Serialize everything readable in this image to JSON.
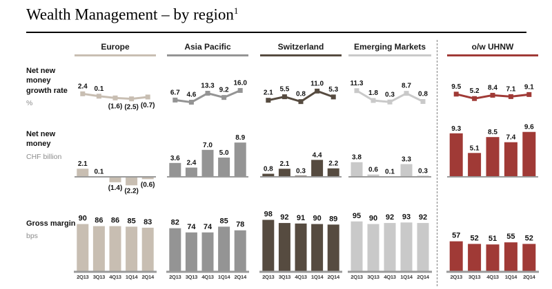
{
  "page": {
    "title": "Wealth Management – by region",
    "title_footnote_marker": "1"
  },
  "quarters": [
    "2Q13",
    "3Q13",
    "4Q13",
    "1Q14",
    "2Q14"
  ],
  "row_labels": [
    {
      "title": "Net new money growth rate",
      "unit": "%"
    },
    {
      "title": "Net new money",
      "unit": "CHF billion"
    },
    {
      "title": "Gross margin",
      "unit": "bps"
    }
  ],
  "panels": [
    {
      "name": "Europe",
      "color": "#c8beb2"
    },
    {
      "name": "Asia Pacific",
      "color": "#949494"
    },
    {
      "name": "Switzerland",
      "color": "#564b40"
    },
    {
      "name": "Emerging Markets",
      "color": "#c9c9c9"
    },
    {
      "name": "o/w UHNW",
      "color": "#a03a36"
    }
  ],
  "chart_data": [
    {
      "type": "line",
      "title": "Net new money growth rate",
      "ylabel": "%",
      "decimals": 1,
      "negative_format": "parentheses",
      "legend": "none",
      "categories": [
        "2Q13",
        "3Q13",
        "4Q13",
        "1Q14",
        "2Q14"
      ],
      "series": [
        {
          "name": "Europe",
          "values": [
            2.4,
            0.1,
            -1.6,
            -2.5,
            -0.7
          ],
          "labels": [
            "2.4",
            "0.1",
            "(1.6)",
            "(2.5)",
            "(0.7)"
          ]
        },
        {
          "name": "Asia Pacific",
          "values": [
            6.7,
            4.6,
            13.3,
            9.2,
            16.0
          ]
        },
        {
          "name": "Switzerland",
          "values": [
            2.1,
            5.5,
            0.8,
            11.0,
            5.3
          ]
        },
        {
          "name": "Emerging Markets",
          "values": [
            11.3,
            1.8,
            0.3,
            8.7,
            0.8
          ]
        },
        {
          "name": "o/w UHNW",
          "values": [
            9.5,
            5.2,
            8.4,
            7.1,
            9.1
          ]
        }
      ]
    },
    {
      "type": "bar",
      "title": "Net new money",
      "ylabel": "CHF billion",
      "decimals": 1,
      "negative_format": "parentheses",
      "legend": "none",
      "categories": [
        "2Q13",
        "3Q13",
        "4Q13",
        "1Q14",
        "2Q14"
      ],
      "series": [
        {
          "name": "Europe",
          "values": [
            2.1,
            0.1,
            -1.4,
            -2.2,
            -0.6
          ],
          "labels": [
            "2.1",
            "0.1",
            "(1.4)",
            "(2.2)",
            "(0.6)"
          ]
        },
        {
          "name": "Asia Pacific",
          "values": [
            3.6,
            2.4,
            7.0,
            5.0,
            8.9
          ]
        },
        {
          "name": "Switzerland",
          "values": [
            0.8,
            2.1,
            0.3,
            4.4,
            2.2
          ]
        },
        {
          "name": "Emerging Markets",
          "values": [
            3.8,
            0.6,
            0.1,
            3.3,
            0.3
          ]
        },
        {
          "name": "o/w UHNW",
          "values": [
            9.3,
            5.1,
            8.5,
            7.4,
            9.6
          ]
        }
      ]
    },
    {
      "type": "bar",
      "title": "Gross margin",
      "ylabel": "bps",
      "decimals": 0,
      "legend": "none",
      "categories": [
        "2Q13",
        "3Q13",
        "4Q13",
        "1Q14",
        "2Q14"
      ],
      "series": [
        {
          "name": "Europe",
          "values": [
            90,
            86,
            86,
            85,
            83
          ]
        },
        {
          "name": "Asia Pacific",
          "values": [
            82,
            74,
            74,
            85,
            78
          ]
        },
        {
          "name": "Switzerland",
          "values": [
            98,
            92,
            91,
            90,
            89
          ]
        },
        {
          "name": "Emerging Markets",
          "values": [
            95,
            90,
            92,
            93,
            92
          ]
        },
        {
          "name": "o/w UHNW",
          "values": [
            57,
            52,
            51,
            55,
            52
          ]
        }
      ]
    }
  ]
}
